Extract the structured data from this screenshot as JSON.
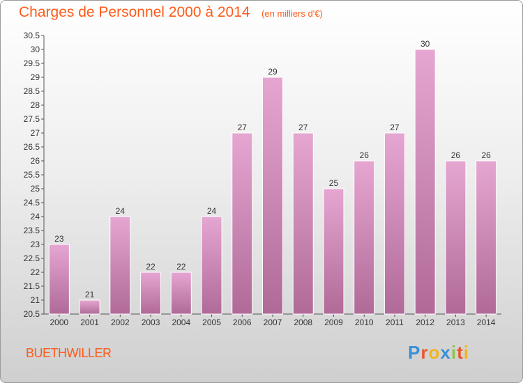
{
  "header": {
    "title": "Charges de Personnel 2000 à 2014",
    "subtitle": "(en milliers d'€)"
  },
  "footer": {
    "commune": "BUETHWILLER",
    "brand": "Proxiti",
    "brand_colors": [
      "#3a8fd6",
      "#e8572a",
      "#f0b41e",
      "#3a8fd6",
      "#8bc34a",
      "#e8572a",
      "#f0b41e"
    ]
  },
  "colors": {
    "bar_fill_top": "#e6a6d2",
    "bar_fill_bottom": "#b06a98",
    "bar_stroke": "#ffffff",
    "title": "#ff5a1a"
  },
  "chart_data": {
    "type": "bar",
    "categories": [
      "2000",
      "2001",
      "2002",
      "2003",
      "2004",
      "2005",
      "2006",
      "2007",
      "2008",
      "2009",
      "2010",
      "2011",
      "2012",
      "2013",
      "2014"
    ],
    "values": [
      23,
      21,
      24,
      22,
      22,
      24,
      27,
      29,
      27,
      25,
      26,
      27,
      30,
      26,
      26
    ],
    "ylim": [
      20.5,
      30.5
    ],
    "yticks": [
      "20.5",
      "21",
      "21.5",
      "22",
      "22.5",
      "23",
      "23.5",
      "24",
      "24.5",
      "25",
      "25.5",
      "26",
      "26.5",
      "27",
      "27.5",
      "28",
      "28.5",
      "29",
      "29.5",
      "30",
      "30.5"
    ],
    "grid": false,
    "title": "Charges de Personnel 2000 à 2014",
    "xlabel": "",
    "ylabel": ""
  }
}
